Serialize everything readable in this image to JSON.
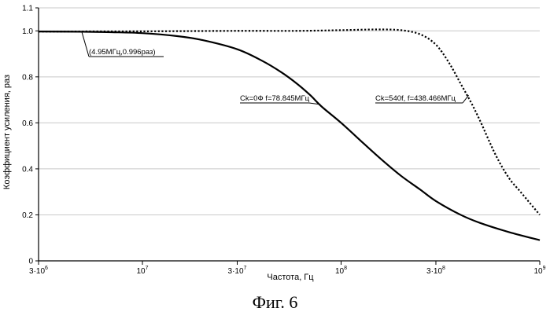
{
  "chart_data": {
    "type": "line",
    "xlabel": "Частота, Гц",
    "ylabel": "Коэффициент усиления, раз",
    "x_scale": "log",
    "xlim": [
      3000000,
      1000000000
    ],
    "ylim": [
      0,
      1.1
    ],
    "grid": "horizontal",
    "x_ticks": [
      {
        "value": 3000000,
        "label": "3·10",
        "sup": "6"
      },
      {
        "value": 10000000,
        "label": "10",
        "sup": "7"
      },
      {
        "value": 30000000,
        "label": "3·10",
        "sup": "7"
      },
      {
        "value": 100000000,
        "label": "10",
        "sup": "8"
      },
      {
        "value": 300000000,
        "label": "3·10",
        "sup": "8"
      },
      {
        "value": 1000000000,
        "label": "10",
        "sup": "9"
      }
    ],
    "y_ticks": [
      {
        "value": 0,
        "label": "0"
      },
      {
        "value": 0.2,
        "label": "0.2"
      },
      {
        "value": 0.4,
        "label": "0.4"
      },
      {
        "value": 0.6,
        "label": "0.6"
      },
      {
        "value": 0.8,
        "label": "0.8"
      },
      {
        "value": 1.0,
        "label": "1.0"
      },
      {
        "value": 1.1,
        "label": "1.1"
      }
    ],
    "series": [
      {
        "style": "solid",
        "x": [
          3000000,
          5000000,
          7000000,
          10000000,
          15000000,
          20000000,
          30000000,
          40000000,
          50000000,
          60000000,
          70000000,
          80000000,
          100000000,
          130000000,
          160000000,
          200000000,
          250000000,
          300000000,
          400000000,
          500000000,
          700000000,
          1000000000
        ],
        "y": [
          0.997,
          0.996,
          0.994,
          0.99,
          0.977,
          0.96,
          0.92,
          0.87,
          0.82,
          0.77,
          0.72,
          0.67,
          0.6,
          0.51,
          0.44,
          0.37,
          0.31,
          0.26,
          0.2,
          0.165,
          0.125,
          0.09
        ]
      },
      {
        "style": "dotted",
        "x": [
          3000000,
          10000000,
          30000000,
          60000000,
          100000000,
          150000000,
          200000000,
          250000000,
          300000000,
          350000000,
          400000000,
          450000000,
          500000000,
          600000000,
          700000000,
          800000000,
          1000000000
        ],
        "y": [
          0.997,
          0.998,
          1.0,
          1.0,
          1.003,
          1.006,
          1.003,
          0.985,
          0.94,
          0.86,
          0.77,
          0.69,
          0.61,
          0.46,
          0.36,
          0.3,
          0.2
        ]
      }
    ],
    "annotations": [
      {
        "text": "(4.95МГц,0.996раз)",
        "x": 4950000,
        "y": 0.996
      },
      {
        "text": "Ck=0Ф f=78.845МГц",
        "x": 78845000,
        "y": 0.68
      },
      {
        "text": "Ck=540f, f=438.466МГц",
        "x": 438466000,
        "y": 0.72
      }
    ]
  },
  "caption": "Фиг. 6"
}
